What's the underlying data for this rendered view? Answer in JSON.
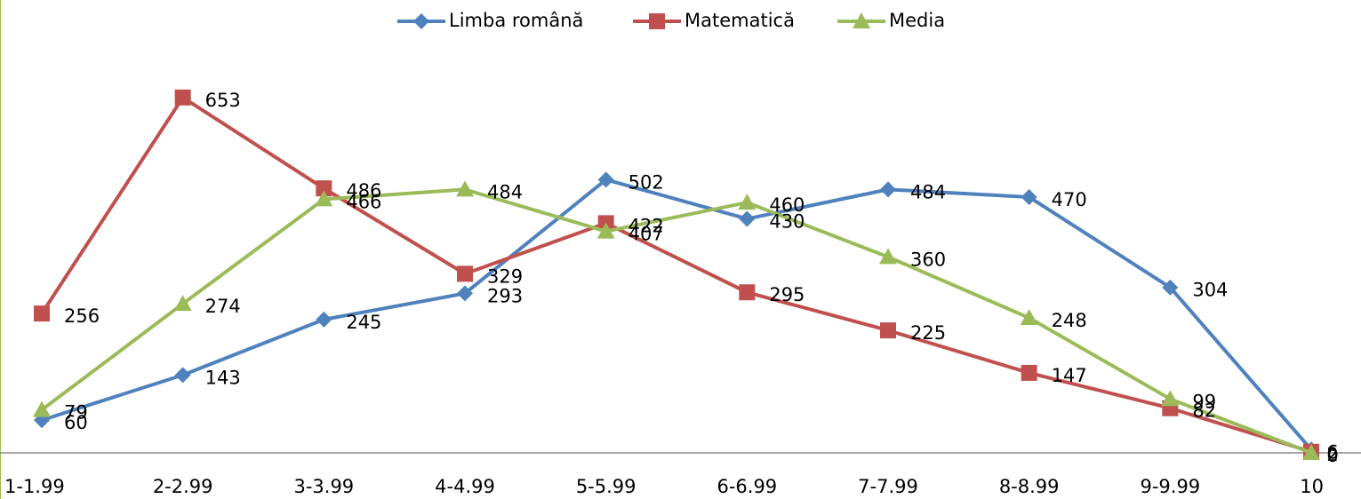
{
  "chart_data": {
    "type": "line",
    "categories": [
      "1-1.99",
      "2-2.99",
      "3-3.99",
      "4-4.99",
      "5-5.99",
      "6-6.99",
      "7-7.99",
      "8-8.99",
      "9-9.99",
      "10"
    ],
    "series": [
      {
        "name": "Limba română",
        "color": "#4f81bd",
        "marker": "diamond",
        "values": [
          60,
          143,
          245,
          293,
          502,
          430,
          484,
          470,
          304,
          6
        ]
      },
      {
        "name": "Matematică",
        "color": "#c0504d",
        "marker": "square",
        "values": [
          256,
          653,
          486,
          329,
          422,
          295,
          225,
          147,
          82,
          2
        ]
      },
      {
        "name": "Media",
        "color": "#9bbb59",
        "marker": "triangle",
        "values": [
          79,
          274,
          466,
          484,
          407,
          460,
          360,
          248,
          99,
          0
        ]
      }
    ],
    "ylim": [
      0,
      700
    ],
    "legend": "top"
  }
}
